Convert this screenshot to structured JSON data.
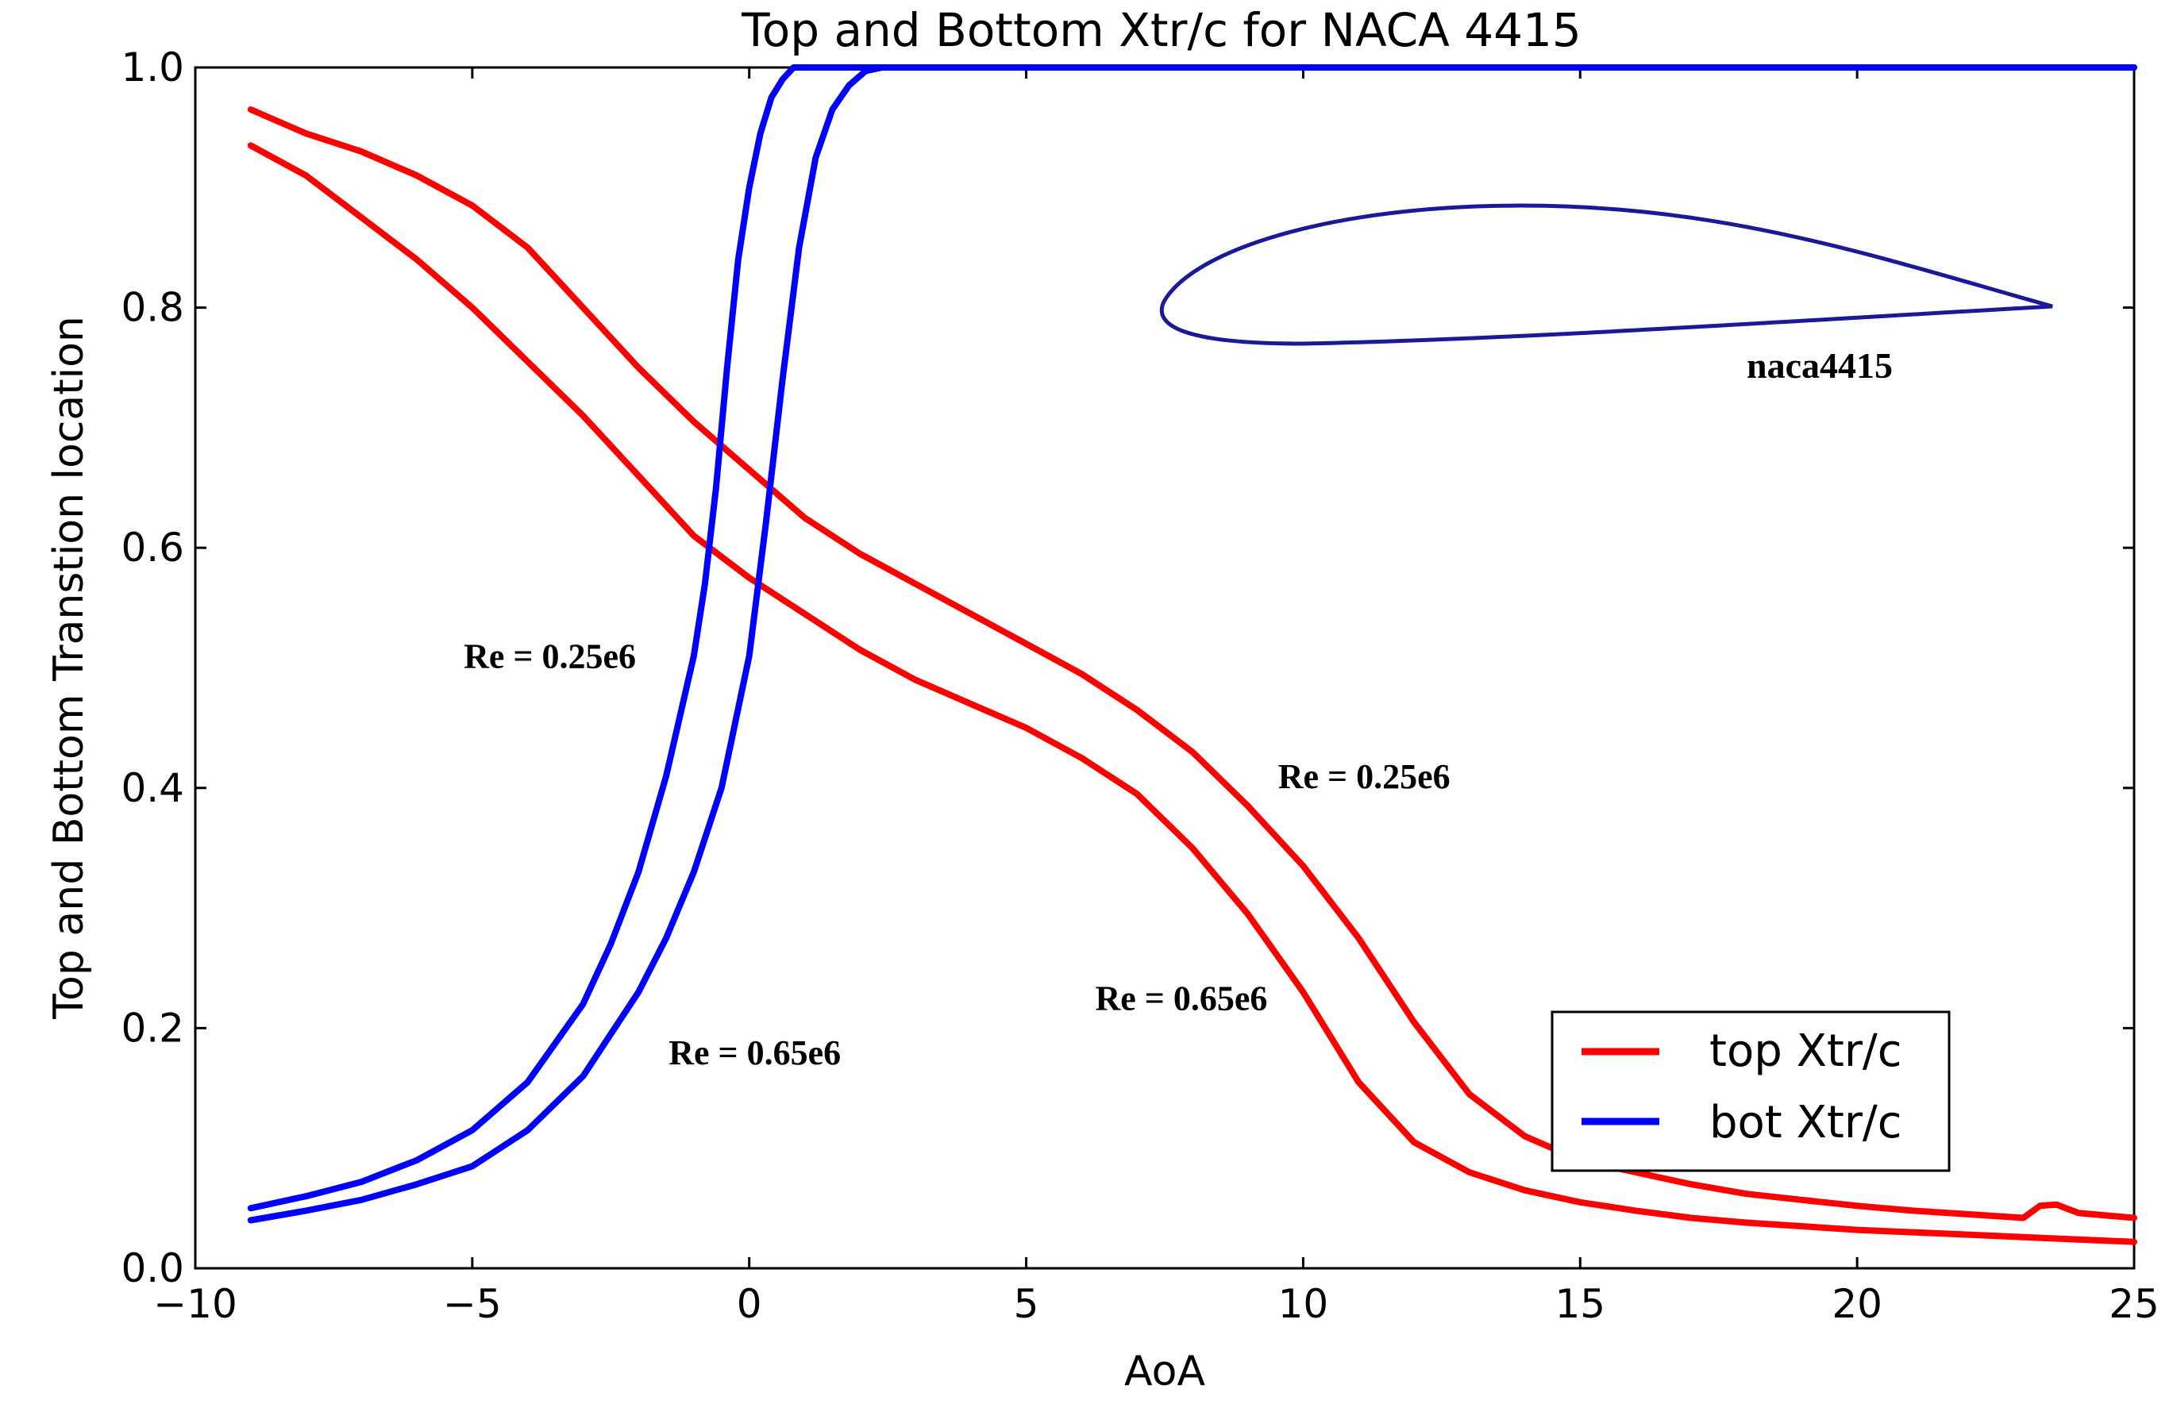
{
  "chart_data": {
    "type": "line",
    "title": "Top and Bottom Xtr/c for NACA 4415",
    "xlabel": "AoA",
    "ylabel": "Top and Bottom Transtion location",
    "xlim": [
      -10,
      25
    ],
    "ylim": [
      0.0,
      1.0
    ],
    "xticks": [
      -10,
      -5,
      0,
      5,
      10,
      15,
      20,
      25
    ],
    "xtick_labels": [
      "−10",
      "−5",
      "0",
      "5",
      "10",
      "15",
      "20",
      "25"
    ],
    "yticks": [
      0.0,
      0.2,
      0.4,
      0.6,
      0.8,
      1.0
    ],
    "ytick_labels": [
      "0.0",
      "0.2",
      "0.4",
      "0.6",
      "0.8",
      "1.0"
    ],
    "grid": false,
    "legend": {
      "position": "lower right",
      "entries": [
        {
          "label": "top Xtr/c",
          "color": "#ff0000"
        },
        {
          "label": "bot Xtr/c",
          "color": "#0000ff"
        }
      ]
    },
    "series": [
      {
        "name": "top Xtr/c Re = 0.25e6",
        "color": "#ff0000",
        "x": [
          -9,
          -8,
          -7,
          -6,
          -5,
          -4,
          -3,
          -2,
          -1,
          0,
          1,
          2,
          3,
          4,
          5,
          6,
          7,
          8,
          9,
          10,
          11,
          12,
          13,
          14,
          15,
          16,
          17,
          18,
          19,
          20,
          21,
          22,
          23,
          23.3,
          23.6,
          24,
          25
        ],
        "y": [
          0.965,
          0.945,
          0.93,
          0.91,
          0.885,
          0.85,
          0.8,
          0.75,
          0.705,
          0.665,
          0.625,
          0.595,
          0.57,
          0.545,
          0.52,
          0.495,
          0.465,
          0.43,
          0.385,
          0.335,
          0.275,
          0.205,
          0.145,
          0.11,
          0.09,
          0.08,
          0.07,
          0.062,
          0.057,
          0.052,
          0.048,
          0.045,
          0.042,
          0.052,
          0.053,
          0.046,
          0.042
        ]
      },
      {
        "name": "top Xtr/c Re = 0.65e6",
        "color": "#ff0000",
        "x": [
          -9,
          -8,
          -7,
          -6,
          -5,
          -4,
          -3,
          -2,
          -1,
          0,
          1,
          2,
          3,
          4,
          5,
          6,
          7,
          8,
          9,
          10,
          11,
          12,
          13,
          14,
          15,
          16,
          17,
          18,
          19,
          20,
          21,
          22,
          23,
          24,
          25
        ],
        "y": [
          0.935,
          0.91,
          0.875,
          0.84,
          0.8,
          0.755,
          0.71,
          0.66,
          0.61,
          0.575,
          0.545,
          0.515,
          0.49,
          0.47,
          0.45,
          0.425,
          0.395,
          0.35,
          0.295,
          0.23,
          0.155,
          0.105,
          0.08,
          0.065,
          0.055,
          0.048,
          0.042,
          0.038,
          0.035,
          0.032,
          0.03,
          0.028,
          0.026,
          0.024,
          0.022
        ]
      },
      {
        "name": "bot Xtr/c Re = 0.25e6",
        "color": "#0000ff",
        "x": [
          -9,
          -8,
          -7,
          -6,
          -5,
          -4,
          -3,
          -2.5,
          -2,
          -1.5,
          -1,
          -0.8,
          -0.6,
          -0.4,
          -0.2,
          0,
          0.2,
          0.4,
          0.6,
          0.8,
          1.0,
          25
        ],
        "y": [
          0.05,
          0.06,
          0.072,
          0.09,
          0.115,
          0.155,
          0.22,
          0.27,
          0.33,
          0.41,
          0.51,
          0.57,
          0.65,
          0.75,
          0.84,
          0.9,
          0.945,
          0.975,
          0.99,
          1.0,
          1.0,
          1.0
        ]
      },
      {
        "name": "bot Xtr/c Re = 0.65e6",
        "color": "#0000ff",
        "x": [
          -9,
          -8,
          -7,
          -6,
          -5,
          -4,
          -3,
          -2,
          -1.5,
          -1,
          -0.5,
          0,
          0.3,
          0.6,
          0.9,
          1.2,
          1.5,
          1.8,
          2.1,
          2.4,
          25
        ],
        "y": [
          0.04,
          0.048,
          0.057,
          0.07,
          0.085,
          0.115,
          0.16,
          0.23,
          0.275,
          0.33,
          0.4,
          0.51,
          0.62,
          0.74,
          0.85,
          0.925,
          0.965,
          0.985,
          0.997,
          1.0,
          1.0
        ]
      }
    ],
    "annotations": [
      {
        "text": "Re = 0.25e6",
        "x": -3.6,
        "y": 0.5,
        "refers_to": "bot Xtr/c"
      },
      {
        "text": "Re = 0.65e6",
        "x": 0.1,
        "y": 0.17,
        "refers_to": "bot Xtr/c"
      },
      {
        "text": "Re = 0.25e6",
        "x": 11.1,
        "y": 0.4,
        "refers_to": "top Xtr/c"
      },
      {
        "text": "Re = 0.65e6",
        "x": 7.8,
        "y": 0.215,
        "refers_to": "top Xtr/c"
      }
    ],
    "inset": {
      "label": "naca4415",
      "description": "airfoil outline",
      "color": "#1a1a99"
    }
  }
}
